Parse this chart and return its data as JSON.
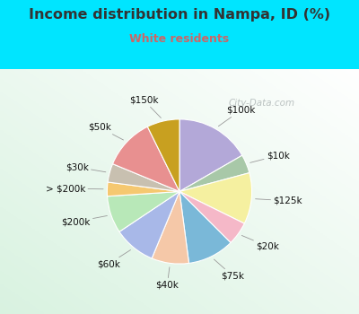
{
  "title": "Income distribution in Nampa, ID (%)",
  "subtitle": "White residents",
  "title_color": "#333333",
  "subtitle_color": "#cc6666",
  "background_outer": "#00e5ff",
  "watermark": "City-Data.com",
  "slices": [
    {
      "label": "$100k",
      "value": 16,
      "color": "#b3a8d8"
    },
    {
      "label": "$10k",
      "value": 4,
      "color": "#a8c8a8"
    },
    {
      "label": "$125k",
      "value": 11,
      "color": "#f5f0a0"
    },
    {
      "label": "$20k",
      "value": 5,
      "color": "#f5b8c8"
    },
    {
      "label": "$75k",
      "value": 10,
      "color": "#7ab8d8"
    },
    {
      "label": "$40k",
      "value": 8,
      "color": "#f5c8a8"
    },
    {
      "label": "$60k",
      "value": 9,
      "color": "#a8b8e8"
    },
    {
      "label": "$200k",
      "value": 8,
      "color": "#b8e8b8"
    },
    {
      "label": "> $200k",
      "value": 3,
      "color": "#f5c870"
    },
    {
      "label": "$30k",
      "value": 4,
      "color": "#c8c0b0"
    },
    {
      "label": "$50k",
      "value": 11,
      "color": "#e89090"
    },
    {
      "label": "$150k",
      "value": 7,
      "color": "#c8a020"
    }
  ],
  "figsize": [
    4.0,
    3.5
  ],
  "dpi": 100
}
